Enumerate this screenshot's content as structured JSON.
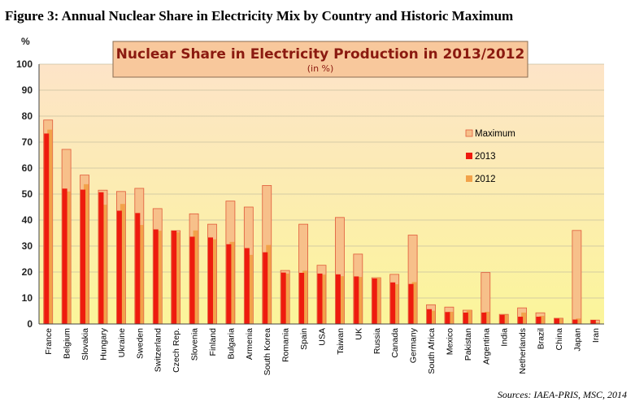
{
  "figure_title": "Figure 3: Annual Nuclear Share in Electricity Mix by Country and Historic Maximum",
  "source": "Sources: IAEA-PRIS, MSC, 2014",
  "colors": {
    "maximum_fill": "#f7c08a",
    "maximum_stroke": "#e05a3a",
    "y2013": "#ee1b0e",
    "y2012": "#f2a24a",
    "bg_top": "#fde4c8",
    "bg_bottom": "#fbf59a",
    "title_box": "#f8c89c"
  },
  "chart_data": {
    "type": "bar",
    "title": "Nuclear Share in Electricity Production in 2013/2012",
    "subtitle": "(in %)",
    "ylabel": "%",
    "ylim": [
      0,
      100
    ],
    "yticks": [
      0,
      10,
      20,
      30,
      40,
      50,
      60,
      70,
      80,
      90,
      100
    ],
    "legend_position": "right",
    "categories": [
      "France",
      "Belgium",
      "Slovakia",
      "Hungary",
      "Ukraine",
      "Sweden",
      "Switzerland",
      "Czech Rep.",
      "Slovenia",
      "Finland",
      "Bulgaria",
      "Armenia",
      "South Korea",
      "Romania",
      "Spain",
      "USA",
      "Taiwan",
      "UK",
      "Russia",
      "Canada",
      "Germany",
      "South Africa",
      "Mexico",
      "Pakistan",
      "Argentina",
      "India",
      "Netherlands",
      "Brazil",
      "China",
      "Japan",
      "Iran"
    ],
    "series": [
      {
        "name": "Maximum",
        "values": [
          78.5,
          67.2,
          57.3,
          51.5,
          51.0,
          52.2,
          44.4,
          35.9,
          42.4,
          38.4,
          47.3,
          45.0,
          53.3,
          20.6,
          38.4,
          22.6,
          41.0,
          26.9,
          17.8,
          19.1,
          34.2,
          7.4,
          6.5,
          5.3,
          19.8,
          3.7,
          6.2,
          4.3,
          2.2,
          36.0,
          1.5
        ]
      },
      {
        "name": "2013",
        "values": [
          73.3,
          52.1,
          51.7,
          50.7,
          43.6,
          42.7,
          36.4,
          35.9,
          33.6,
          33.3,
          30.7,
          29.2,
          27.6,
          19.8,
          19.7,
          19.4,
          19.1,
          18.3,
          17.5,
          16.0,
          15.4,
          5.7,
          4.6,
          4.4,
          4.4,
          3.5,
          2.8,
          2.8,
          2.1,
          1.7,
          1.5
        ]
      },
      {
        "name": "2012",
        "values": [
          74.8,
          51.0,
          53.8,
          45.9,
          46.2,
          38.1,
          35.9,
          35.3,
          36.0,
          32.6,
          31.6,
          26.6,
          30.4,
          19.4,
          20.5,
          19.0,
          18.4,
          18.1,
          17.8,
          15.3,
          16.1,
          5.1,
          4.7,
          5.3,
          4.7,
          3.6,
          4.4,
          3.1,
          2.0,
          2.1,
          0.6
        ]
      }
    ]
  }
}
